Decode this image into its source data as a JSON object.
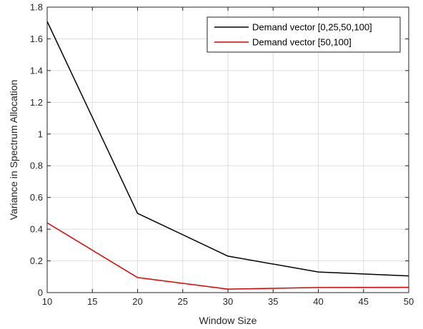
{
  "chart_data": {
    "type": "line",
    "title": "",
    "xlabel": "Window Size",
    "ylabel": "Variance in Spectrum Allocation",
    "xlim": [
      10,
      50
    ],
    "ylim": [
      0,
      1.8
    ],
    "xticks": [
      10,
      15,
      20,
      25,
      30,
      35,
      40,
      45,
      50
    ],
    "yticks": [
      0,
      0.2,
      0.4,
      0.6,
      0.8,
      1,
      1.2,
      1.4,
      1.6,
      1.8
    ],
    "xtick_labels": [
      "10",
      "15",
      "20",
      "25",
      "30",
      "35",
      "40",
      "45",
      "50"
    ],
    "ytick_labels": [
      "0",
      "0.2",
      "0.4",
      "0.6",
      "0.8",
      "1",
      "1.2",
      "1.4",
      "1.6",
      "1.8"
    ],
    "grid": true,
    "legend_position": "top-right",
    "series": [
      {
        "name": "Demand vector [0,25,50,100]",
        "color": "#000000",
        "x": [
          10,
          20,
          30,
          40,
          50
        ],
        "y": [
          1.71,
          0.5,
          0.23,
          0.13,
          0.105
        ]
      },
      {
        "name": "Demand vector [50,100]",
        "color": "#e00000",
        "x": [
          10,
          20,
          30,
          40,
          50
        ],
        "y": [
          0.44,
          0.095,
          0.022,
          0.032,
          0.033
        ]
      }
    ]
  }
}
